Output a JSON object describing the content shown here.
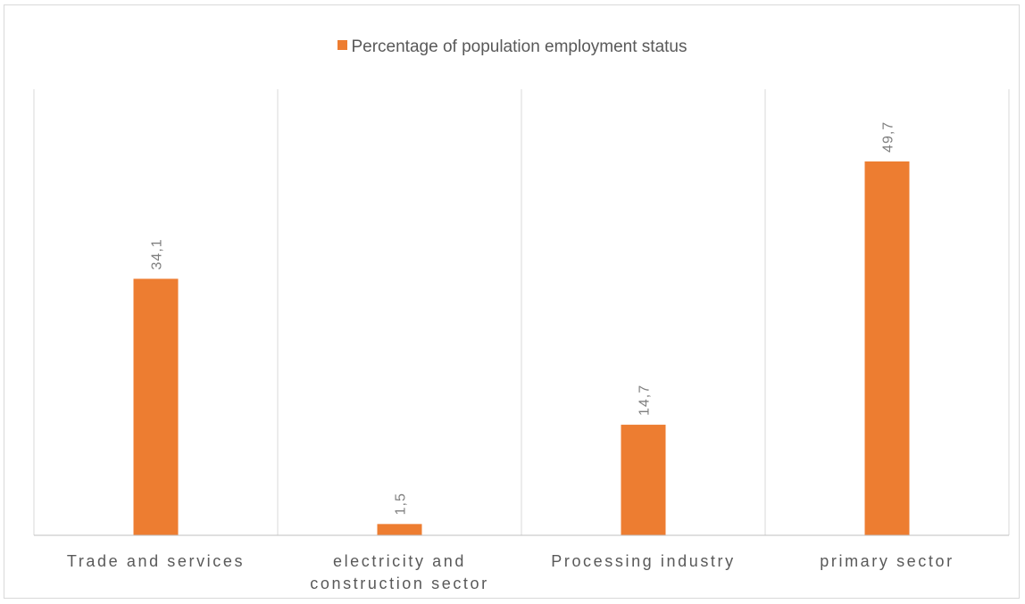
{
  "chart_data": {
    "type": "bar",
    "title": "",
    "xlabel": "",
    "ylabel": "",
    "categories": [
      "Trade and services",
      "electricity and construction sector",
      "Processing industry",
      "primary sector"
    ],
    "series": [
      {
        "name": "Percentage of population employment status",
        "values": [
          34.1,
          1.5,
          14.7,
          49.7
        ],
        "data_labels": [
          "34,1",
          "1,5",
          "14,7",
          "49,7"
        ],
        "color": "#ed7d31"
      }
    ],
    "ylim": [
      0,
      59.3
    ],
    "grid": "vertical category separators",
    "legend_position": "top",
    "data_labels_rotated": true
  }
}
